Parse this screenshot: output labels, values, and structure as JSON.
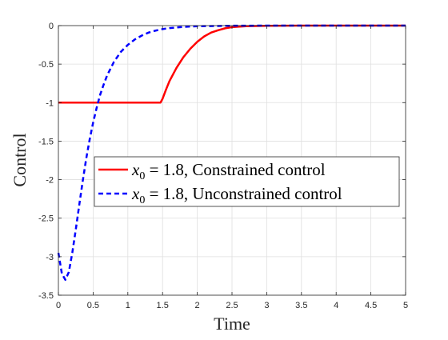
{
  "chart_data": {
    "type": "line",
    "title": "",
    "xlabel": "Time",
    "ylabel": "Control",
    "xlim": [
      0,
      5
    ],
    "ylim": [
      -3.5,
      0
    ],
    "xticks": [
      0,
      0.5,
      1,
      1.5,
      2,
      2.5,
      3,
      3.5,
      4,
      4.5,
      5
    ],
    "xtick_labels": [
      "0",
      "0.5",
      "1",
      "1.5",
      "2",
      "2.5",
      "3",
      "3.5",
      "4",
      "4.5",
      "5"
    ],
    "yticks": [
      -3.5,
      -3,
      -2.5,
      -2,
      -1.5,
      -1,
      -0.5,
      0
    ],
    "ytick_labels": [
      "-3.5",
      "-3",
      "-2.5",
      "-2",
      "-1.5",
      "-1",
      "-0.5",
      "0"
    ],
    "grid": true,
    "legend_position": "center-left",
    "series": [
      {
        "name": "Constrained control",
        "legend_var": "x",
        "legend_sub": "0",
        "legend_eq": " = 1.8, ",
        "legend_rest": "Constrained control",
        "color": "#ff0000",
        "style": "solid",
        "x": [
          0,
          0.5,
          1,
          1.47,
          1.5,
          1.55,
          1.6,
          1.7,
          1.8,
          1.9,
          2.0,
          2.1,
          2.2,
          2.3,
          2.4,
          2.5,
          2.7,
          3.0,
          3.5,
          4.0,
          4.5,
          5.0
        ],
        "y": [
          -1,
          -1,
          -1,
          -1,
          -0.95,
          -0.83,
          -0.72,
          -0.55,
          -0.41,
          -0.3,
          -0.21,
          -0.14,
          -0.09,
          -0.06,
          -0.035,
          -0.02,
          -0.008,
          -0.002,
          0,
          0,
          0,
          0
        ]
      },
      {
        "name": "Unconstrained control",
        "legend_var": "x",
        "legend_sub": "0",
        "legend_eq": " = 1.8, ",
        "legend_rest": "Unconstrained control",
        "color": "#0000ff",
        "style": "dashed",
        "x": [
          0,
          0.05,
          0.1,
          0.15,
          0.2,
          0.25,
          0.3,
          0.35,
          0.4,
          0.45,
          0.5,
          0.55,
          0.6,
          0.65,
          0.7,
          0.8,
          0.9,
          1.0,
          1.1,
          1.2,
          1.3,
          1.4,
          1.5,
          1.6,
          1.8,
          2.0,
          2.5,
          3.0,
          4.0,
          5.0
        ],
        "y": [
          -2.95,
          -3.22,
          -3.3,
          -3.2,
          -2.95,
          -2.65,
          -2.33,
          -2.02,
          -1.73,
          -1.48,
          -1.26,
          -1.07,
          -0.9,
          -0.77,
          -0.65,
          -0.47,
          -0.34,
          -0.25,
          -0.18,
          -0.13,
          -0.09,
          -0.065,
          -0.045,
          -0.032,
          -0.016,
          -0.008,
          -0.002,
          0,
          0,
          0
        ]
      }
    ]
  }
}
